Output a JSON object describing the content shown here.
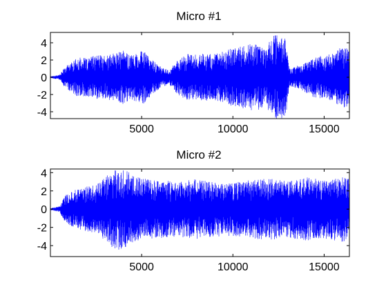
{
  "chart_data": [
    {
      "type": "line",
      "title": "Micro #1",
      "xlabel": "",
      "ylabel": "",
      "xlim": [
        1,
        16384
      ],
      "ylim": [
        -4.8,
        5.2
      ],
      "xticks": [
        5000,
        10000,
        15000
      ],
      "xtick_labels": [
        "5000",
        "10000",
        "15000"
      ],
      "yticks": [
        -4,
        -2,
        0,
        2,
        4
      ],
      "ytick_labels": [
        "-4",
        "-2",
        "0",
        "2",
        "4"
      ],
      "grid": false,
      "color": "#0000ff",
      "series": [
        {
          "envelope_x": [
            0,
            500,
            800,
            1500,
            2000,
            2500,
            3000,
            3500,
            4000,
            4500,
            5000,
            5500,
            6000,
            6500,
            7000,
            7500,
            8000,
            8500,
            9000,
            9500,
            10000,
            10500,
            11000,
            11500,
            11800,
            12000,
            12300,
            12600,
            12900,
            13100,
            13300,
            13800,
            14500,
            15000,
            15500,
            16000,
            16384
          ],
          "envelope_y": [
            0.1,
            0.3,
            1.2,
            2.3,
            2.2,
            2.6,
            2.5,
            2.8,
            3.1,
            2.6,
            3.3,
            2.2,
            1.3,
            0.8,
            2.1,
            2.7,
            2.6,
            2.8,
            2.7,
            3.0,
            3.4,
            3.6,
            3.9,
            3.8,
            3.0,
            4.2,
            5.0,
            5.1,
            4.5,
            1.0,
            1.2,
            1.6,
            2.4,
            2.5,
            2.8,
            3.6,
            3.4
          ]
        }
      ]
    },
    {
      "type": "line",
      "title": "Micro #2",
      "xlabel": "",
      "ylabel": "",
      "xlim": [
        1,
        16384
      ],
      "ylim": [
        -5.2,
        4.4
      ],
      "xticks": [
        5000,
        10000,
        15000
      ],
      "xtick_labels": [
        "5000",
        "10000",
        "15000"
      ],
      "yticks": [
        -4,
        -2,
        0,
        2,
        4
      ],
      "ytick_labels": [
        "-4",
        "-2",
        "0",
        "2",
        "4"
      ],
      "grid": false,
      "color": "#0000ff",
      "series": [
        {
          "envelope_x": [
            0,
            500,
            800,
            1500,
            2000,
            2500,
            3000,
            3500,
            4000,
            4500,
            5000,
            6000,
            7000,
            8000,
            9000,
            10000,
            11000,
            12000,
            13000,
            14000,
            15000,
            16000,
            16384
          ],
          "envelope_y": [
            0.1,
            0.3,
            1.5,
            2.3,
            2.5,
            2.6,
            3.5,
            4.4,
            4.5,
            3.8,
            3.4,
            3.2,
            3.0,
            3.3,
            3.0,
            3.0,
            3.2,
            3.4,
            3.1,
            3.5,
            3.2,
            3.6,
            3.3
          ]
        }
      ]
    }
  ]
}
